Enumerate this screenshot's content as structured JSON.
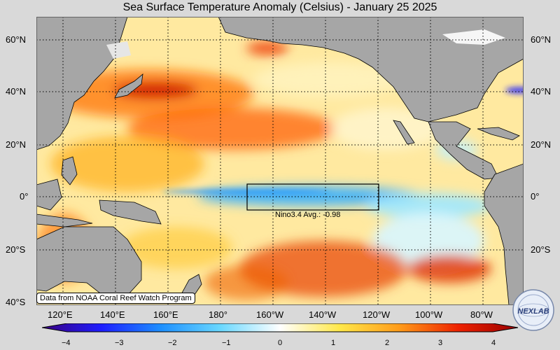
{
  "title": "Sea Surface Temperature Anomaly (Celsius) - January 25 2025",
  "lat_labels": [
    "60°N",
    "40°N",
    "20°N",
    "0°",
    "20°S",
    "40°S"
  ],
  "lon_labels": [
    "120°E",
    "140°E",
    "160°E",
    "180°",
    "160°W",
    "140°W",
    "120°W",
    "100°W",
    "80°W"
  ],
  "colorbar": {
    "ticks": [
      "−4",
      "−3",
      "−2",
      "−1",
      "0",
      "1",
      "2",
      "3",
      "4"
    ],
    "colors": [
      "#3a0080",
      "#1e1eff",
      "#1e90ff",
      "#6ad8ff",
      "#ffffff",
      "#ffe84a",
      "#ff9c1a",
      "#ee2200",
      "#990000"
    ]
  },
  "nino_label": "Nino3.4 Avg.: -0.98",
  "credit": "Data from NOAA Coral Reef Watch Program",
  "logo_text": "NEXLAB",
  "colors": {
    "land": "#a6a6a6",
    "ocean_base": "#ffe9a0",
    "background": "#d9d9d9"
  }
}
